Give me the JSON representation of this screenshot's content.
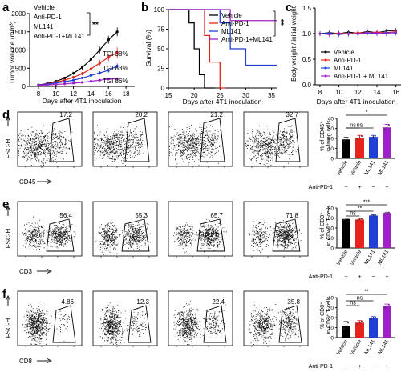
{
  "panel_letters": [
    "a",
    "b",
    "c",
    "d",
    "e",
    "f"
  ],
  "colors": {
    "vehicle": "#000000",
    "antipd1": "#e8221c",
    "ml141": "#1f3fd6",
    "combo": "#a020c8"
  },
  "panel_a": {
    "ylabel": "Tumor volume (mm³)",
    "xlabel": "Days after 4T1 inoculation",
    "legend": [
      "Vehicle",
      "Anti-PD-1",
      "ML141",
      "Anti-PD-1+ML141"
    ],
    "sig": "**",
    "tgi": [
      "TGI 38%",
      "TGI 63%",
      "TGI 86%"
    ],
    "xticks": [
      "8",
      "10",
      "12",
      "14",
      "16",
      "18"
    ],
    "yticks": [
      "0",
      "500",
      "1000",
      "1500",
      "2000"
    ]
  },
  "panel_b": {
    "ylabel": "Survival (%)",
    "xlabel": "Days after 4T1 inoculation",
    "legend": [
      "Vehicle",
      "Anti-PD-1",
      "ML141",
      "Anti-PD-1+ML141"
    ],
    "sig": "**",
    "xticks": [
      "15",
      "20",
      "25",
      "30",
      "35"
    ],
    "yticks": [
      "0",
      "25",
      "50",
      "75",
      "100"
    ]
  },
  "panel_c": {
    "ylabel": "Body weight / initial weight",
    "xlabel": "Days after 4T1 inoculation",
    "legend": [
      "Vehicle",
      "Anti-PD-1",
      "ML141",
      "Anti-PD-1 + ML141"
    ],
    "xticks": [
      "8",
      "10",
      "12",
      "14",
      "16"
    ],
    "yticks": [
      "0.0",
      "0.5",
      "1.0",
      "1.5"
    ]
  },
  "flow_rows": [
    {
      "letter": "d",
      "yaxis": "FSC-H",
      "xaxis": "CD45",
      "gates": [
        "17.2",
        "20.2",
        "21.2",
        "32.7"
      ],
      "bar_label_1": "% of CD45⁺",
      "bar_label_2": "in living cells",
      "yticks": [
        "0",
        "10",
        "20",
        "30",
        "40"
      ],
      "sig": [
        "ns",
        "ns",
        "*"
      ]
    },
    {
      "letter": "e",
      "yaxis": "FSC-H",
      "xaxis": "CD3",
      "gates": [
        "56.4",
        "55.3",
        "65.7",
        "71.8"
      ],
      "bar_label_1": "% of CD3⁺",
      "bar_label_2": "in CD45⁺ T cells",
      "yticks": [
        "0",
        "20",
        "40",
        "60",
        "80"
      ],
      "sig": [
        "ns",
        "**",
        "***"
      ]
    },
    {
      "letter": "f",
      "yaxis": "FSC-H",
      "xaxis": "CD8",
      "gates": [
        "4.86",
        "12.3",
        "22.4",
        "35.8"
      ],
      "bar_label_1": "% of CD8⁺",
      "bar_label_2": "in CD3⁺ T cells",
      "yticks": [
        "0",
        "10",
        "20",
        "30",
        "40"
      ],
      "sig": [
        "ns",
        "ns",
        "**"
      ]
    }
  ],
  "bar_categories": [
    "Vehicle",
    "Vehicle",
    "ML141",
    "ML141"
  ],
  "bar_antipd1": [
    "−",
    "+",
    "−",
    "+"
  ],
  "antipd1_row_label": "Anti-PD-1",
  "chart_data": [
    {
      "type": "line",
      "title": "",
      "xlabel": "Days after 4T1 inoculation",
      "ylabel": "Tumor volume (mm³)",
      "xlim": [
        7,
        19
      ],
      "ylim": [
        0,
        2000
      ],
      "x": [
        8,
        9,
        10,
        11,
        12,
        13,
        14,
        15,
        16,
        17
      ],
      "series": [
        {
          "name": "Vehicle",
          "values": [
            40,
            80,
            140,
            230,
            360,
            520,
            740,
            1000,
            1280,
            1500
          ],
          "err": [
            10,
            15,
            20,
            30,
            40,
            55,
            70,
            90,
            110,
            120
          ]
        },
        {
          "name": "Anti-PD-1",
          "values": [
            40,
            70,
            110,
            170,
            250,
            350,
            480,
            640,
            800,
            930
          ],
          "err": [
            10,
            15,
            20,
            25,
            35,
            45,
            60,
            80,
            100,
            140
          ]
        },
        {
          "name": "ML141",
          "values": [
            40,
            60,
            90,
            130,
            170,
            230,
            300,
            370,
            440,
            560
          ],
          "err": [
            8,
            10,
            15,
            20,
            25,
            30,
            40,
            50,
            60,
            70
          ]
        },
        {
          "name": "Anti-PD-1+ML141",
          "values": [
            30,
            40,
            55,
            70,
            90,
            110,
            140,
            170,
            200,
            210
          ],
          "err": [
            5,
            8,
            10,
            12,
            15,
            18,
            20,
            25,
            30,
            35
          ]
        }
      ]
    },
    {
      "type": "line",
      "title": "",
      "xlabel": "Days after 4T1 inoculation",
      "ylabel": "Survival (%)",
      "xlim": [
        15,
        36
      ],
      "ylim": [
        0,
        100
      ],
      "series": [
        {
          "name": "Vehicle",
          "steps": [
            [
              15,
              100
            ],
            [
              19,
              100
            ],
            [
              19,
              83
            ],
            [
              20,
              83
            ],
            [
              20,
              50
            ],
            [
              21,
              50
            ],
            [
              21,
              17
            ],
            [
              22,
              17
            ],
            [
              22,
              0
            ],
            [
              24,
              0
            ]
          ]
        },
        {
          "name": "Anti-PD-1",
          "steps": [
            [
              15,
              100
            ],
            [
              22,
              100
            ],
            [
              22,
              67
            ],
            [
              23,
              67
            ],
            [
              23,
              33
            ],
            [
              25,
              33
            ],
            [
              25,
              0
            ],
            [
              26,
              0
            ]
          ]
        },
        {
          "name": "ML141",
          "steps": [
            [
              15,
              100
            ],
            [
              25,
              100
            ],
            [
              25,
              83
            ],
            [
              27,
              83
            ],
            [
              27,
              50
            ],
            [
              30,
              50
            ],
            [
              30,
              29
            ],
            [
              36,
              29
            ]
          ]
        },
        {
          "name": "Anti-PD-1+ML141",
          "steps": [
            [
              15,
              100
            ],
            [
              27,
              100
            ],
            [
              27,
              86
            ],
            [
              36,
              86
            ]
          ]
        }
      ]
    },
    {
      "type": "line",
      "title": "",
      "xlabel": "Days after 4T1 inoculation",
      "ylabel": "Body weight / initial weight",
      "xlim": [
        7.5,
        16.2
      ],
      "ylim": [
        0,
        1.5
      ],
      "x": [
        8,
        9,
        10,
        11,
        12,
        13,
        14,
        15,
        16
      ],
      "series": [
        {
          "name": "Vehicle",
          "values": [
            1.0,
            1.02,
            1.0,
            1.03,
            1.01,
            1.04,
            1.02,
            1.05,
            1.06
          ]
        },
        {
          "name": "Anti-PD-1",
          "values": [
            1.0,
            0.99,
            1.01,
            1.0,
            1.02,
            1.01,
            1.03,
            1.02,
            1.04
          ]
        },
        {
          "name": "ML141",
          "values": [
            1.0,
            1.01,
            0.98,
            1.0,
            0.99,
            1.01,
            1.0,
            1.02,
            1.01
          ]
        },
        {
          "name": "Anti-PD-1 + ML141",
          "values": [
            1.0,
            0.98,
            1.0,
            0.99,
            1.0,
            1.02,
            1.01,
            1.0,
            1.03
          ]
        }
      ]
    },
    {
      "type": "bar",
      "ylabel": "% of CD45⁺ in living cells",
      "ylim": [
        0,
        40
      ],
      "categories": [
        "Vehicle",
        "Vehicle",
        "ML141",
        "ML141"
      ],
      "anti_pd1": [
        "−",
        "+",
        "−",
        "+"
      ],
      "values": [
        19,
        20.5,
        21.5,
        31
      ],
      "err": [
        2,
        2.5,
        1.5,
        3
      ]
    },
    {
      "type": "bar",
      "ylabel": "% of CD3⁺ in CD45⁺ T cells",
      "ylim": [
        0,
        80
      ],
      "categories": [
        "Vehicle",
        "Vehicle",
        "ML141",
        "ML141"
      ],
      "anti_pd1": [
        "−",
        "+",
        "−",
        "+"
      ],
      "values": [
        58,
        57,
        65,
        70
      ],
      "err": [
        2,
        2,
        1.5,
        1.5
      ]
    },
    {
      "type": "bar",
      "ylabel": "% of CD8⁺ in CD3⁺ T cells",
      "ylim": [
        0,
        40
      ],
      "categories": [
        "Vehicle",
        "Vehicle",
        "ML141",
        "ML141"
      ],
      "anti_pd1": [
        "−",
        "+",
        "−",
        "+"
      ],
      "values": [
        12,
        15,
        19.5,
        31.5
      ],
      "err": [
        4,
        2,
        1.5,
        2
      ]
    }
  ]
}
